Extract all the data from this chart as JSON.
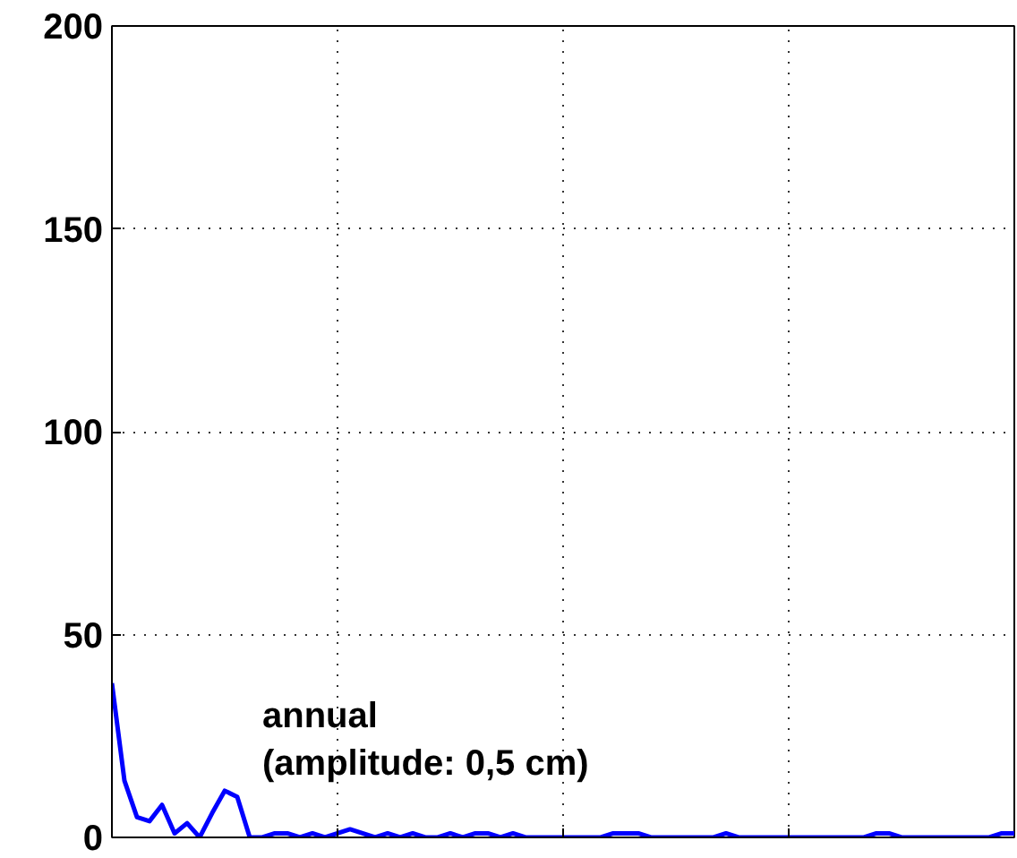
{
  "chart_data": {
    "type": "line",
    "categories": [
      null,
      null,
      null,
      null,
      null,
      null,
      null,
      null,
      null,
      null,
      null,
      null,
      null,
      null,
      null,
      null,
      null,
      null,
      null,
      null,
      null,
      null,
      null,
      null,
      null,
      null,
      null,
      null,
      null,
      null,
      null,
      null,
      null,
      null,
      null,
      null,
      null,
      null,
      null,
      null,
      null,
      null,
      null,
      null,
      null,
      null,
      null,
      null,
      null,
      null,
      null,
      null,
      null,
      null,
      null,
      null,
      null,
      null,
      null,
      null,
      null,
      null,
      null,
      null,
      null,
      null,
      null,
      null,
      null,
      null,
      null,
      null,
      null
    ],
    "series": [
      {
        "color": "#0000ff",
        "values": [
          38,
          14,
          5,
          4,
          8,
          1,
          3.5,
          0,
          6,
          11.5,
          10,
          0,
          0,
          1,
          1,
          0,
          1,
          0,
          1,
          2,
          1,
          0,
          1,
          0,
          1,
          0,
          0,
          1,
          0,
          1,
          1,
          0,
          1,
          0,
          0,
          0,
          0,
          0,
          0,
          0,
          1,
          1,
          1,
          0,
          0,
          0,
          0,
          0,
          0,
          1,
          0,
          0,
          0,
          0,
          0,
          0,
          0,
          0,
          0,
          0,
          0,
          1,
          1,
          0,
          0,
          0,
          0,
          0,
          0,
          0,
          0,
          1,
          1
        ]
      }
    ],
    "ylim": [
      0,
      200
    ],
    "yticks": [
      0,
      50,
      100,
      150,
      200
    ],
    "grid": true,
    "line_style": "solid",
    "annotations": [
      "annual\n(amplitude: 0,5 cm)"
    ]
  }
}
